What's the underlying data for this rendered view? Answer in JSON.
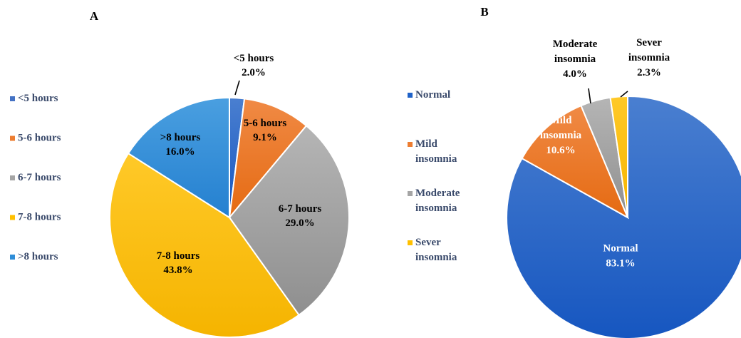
{
  "chart_data": [
    {
      "type": "pie",
      "panel_label": "A",
      "categories": [
        "<5 hours",
        "5-6 hours",
        "6-7 hours",
        "7-8 hours",
        ">8 hours"
      ],
      "values": [
        2.0,
        9.1,
        29.0,
        43.8,
        16.0
      ],
      "value_labels": [
        "2.0%",
        "9.1%",
        "29.0%",
        "43.8%",
        "16.0%"
      ],
      "slice_labels": [
        [
          "<5 hours",
          "2.0%"
        ],
        [
          "5-6 hours",
          "9.1%"
        ],
        [
          "6-7 hours",
          "29.0%"
        ],
        [
          "7-8 hours",
          "43.8%"
        ],
        [
          ">8 hours",
          "16.0%"
        ]
      ],
      "colors": [
        "#4472C4",
        "#ED7D31",
        "#A5A5A5",
        "#FFC000",
        "#2E8DD8"
      ],
      "legend_labels": [
        [
          "<5 hours"
        ],
        [
          "5-6 hours"
        ],
        [
          "6-7 hours"
        ],
        [
          "7-8 hours"
        ],
        [
          ">8 hours"
        ]
      ],
      "legend_position": "left"
    },
    {
      "type": "pie",
      "panel_label": "B",
      "categories": [
        "Normal",
        "Mild insomnia",
        "Moderate insomnia",
        "Sever insomnia"
      ],
      "values": [
        83.1,
        10.6,
        4.0,
        2.3
      ],
      "value_labels": [
        "83.1%",
        "10.6%",
        "4.0%",
        "2.3%"
      ],
      "slice_labels": [
        [
          "Normal",
          "83.1%"
        ],
        [
          "Mild",
          "insomnia",
          "10.6%"
        ],
        [
          "Moderate",
          "insomnia",
          "4.0%"
        ],
        [
          "Sever",
          "insomnia",
          "2.3%"
        ]
      ],
      "colors": [
        "#1F62C8",
        "#ED7D31",
        "#A5A5A5",
        "#FFC000"
      ],
      "legend_labels": [
        [
          "Normal"
        ],
        [
          "Mild",
          "insomnia"
        ],
        [
          "Moderate",
          "insomnia"
        ],
        [
          "Sever",
          "insomnia"
        ]
      ],
      "legend_position": "left"
    }
  ]
}
